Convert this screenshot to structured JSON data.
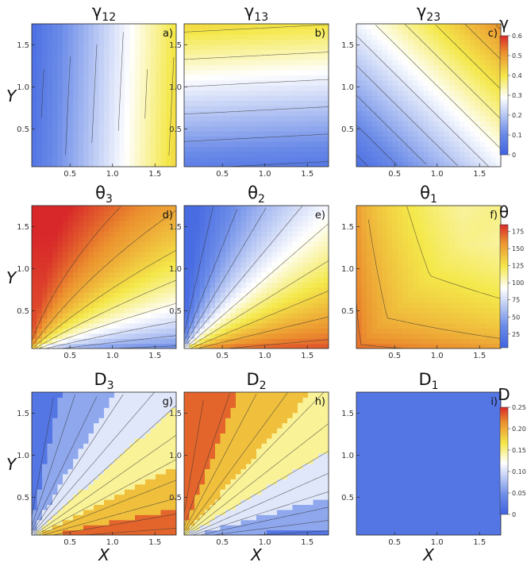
{
  "chart_data": [
    {
      "type": "heatmap",
      "panel": "a)",
      "title": "γ12",
      "xlabel": "",
      "ylabel": "Y",
      "xticks": [
        0.5,
        1.0,
        1.5
      ],
      "yticks": [
        0.5,
        1.0,
        1.5
      ],
      "xlim": [
        0.05,
        1.75
      ],
      "ylim": [
        0.05,
        1.75
      ],
      "colorbar": "gamma",
      "field": "gx",
      "scale": 0.6,
      "levels": 9,
      "gradient": "h"
    },
    {
      "type": "heatmap",
      "panel": "b)",
      "title": "γ13",
      "xlabel": "",
      "ylabel": "",
      "xticks": [
        0.5,
        1.0,
        1.5
      ],
      "yticks": [
        0.5,
        1.0,
        1.5
      ],
      "xlim": [
        0.05,
        1.75
      ],
      "ylim": [
        0.05,
        1.75
      ],
      "colorbar": "gamma",
      "field": "gy",
      "scale": 0.6,
      "levels": 9,
      "gradient": "v"
    },
    {
      "type": "heatmap",
      "panel": "c)",
      "title": "γ23",
      "xlabel": "",
      "ylabel": "",
      "xticks": [
        0.5,
        1.0,
        1.5
      ],
      "yticks": [
        0.5,
        1.0,
        1.5
      ],
      "xlim": [
        0.05,
        1.75
      ],
      "ylim": [
        0.05,
        1.75
      ],
      "colorbar": "gamma",
      "field": "gxy",
      "scale": 0.6,
      "levels": 12,
      "gradient": "d"
    },
    {
      "type": "heatmap",
      "panel": "d)",
      "title": "θ3",
      "xlabel": "",
      "ylabel": "Y",
      "xticks": [
        0.5,
        1.0,
        1.5
      ],
      "yticks": [
        0.5,
        1.0,
        1.5
      ],
      "xlim": [
        0.05,
        1.75
      ],
      "ylim": [
        0.05,
        1.75
      ],
      "colorbar": "theta",
      "field": "t3",
      "scale": 180,
      "levels": 10
    },
    {
      "type": "heatmap",
      "panel": "e)",
      "title": "θ2",
      "xlabel": "",
      "ylabel": "",
      "xticks": [
        0.5,
        1.0,
        1.5
      ],
      "yticks": [
        0.5,
        1.0,
        1.5
      ],
      "xlim": [
        0.05,
        1.75
      ],
      "ylim": [
        0.05,
        1.75
      ],
      "colorbar": "theta",
      "field": "t2",
      "scale": 180,
      "levels": 10
    },
    {
      "type": "heatmap",
      "panel": "f)",
      "title": "θ1",
      "xlabel": "",
      "ylabel": "",
      "xticks": [
        0.5,
        1.0,
        1.5
      ],
      "yticks": [
        0.5,
        1.0,
        1.5
      ],
      "xlim": [
        0.05,
        1.75
      ],
      "ylim": [
        0.05,
        1.75
      ],
      "colorbar": "theta",
      "field": "t1",
      "scale": 180,
      "levels": 9
    },
    {
      "type": "heatmap",
      "panel": "g)",
      "title": "D3",
      "xlabel": "X",
      "ylabel": "Y",
      "xticks": [
        0.5,
        1.0,
        1.5
      ],
      "yticks": [
        0.5,
        1.0,
        1.5
      ],
      "xlim": [
        0.05,
        1.75
      ],
      "ylim": [
        0.05,
        1.75
      ],
      "colorbar": "dens",
      "field": "d3",
      "scale": 0.25,
      "levels": 14,
      "banded": true
    },
    {
      "type": "heatmap",
      "panel": "h)",
      "title": "D2",
      "xlabel": "X",
      "ylabel": "",
      "xticks": [
        0.5,
        1.0,
        1.5
      ],
      "yticks": [
        0.5,
        1.0,
        1.5
      ],
      "xlim": [
        0.05,
        1.75
      ],
      "ylim": [
        0.05,
        1.75
      ],
      "colorbar": "dens",
      "field": "d2",
      "scale": 0.25,
      "levels": 14,
      "banded": true
    },
    {
      "type": "heatmap",
      "panel": "i)",
      "title": "D1",
      "xlabel": "X",
      "ylabel": "",
      "xticks": [
        0.5,
        1.0,
        1.5
      ],
      "yticks": [
        0.5,
        1.0,
        1.5
      ],
      "xlim": [
        0.05,
        1.75
      ],
      "ylim": [
        0.05,
        1.75
      ],
      "colorbar": "dens",
      "field": "d1",
      "scale": 0.25,
      "levels": 4,
      "banded": true
    }
  ],
  "colorbars": {
    "gamma": {
      "symbol": "γ",
      "ticks": [
        "0.6",
        "0.5",
        "0.4",
        "0.3",
        "0.2",
        "0.1",
        "0"
      ],
      "values": [
        0.6,
        0.5,
        0.4,
        0.3,
        0.2,
        0.1,
        0
      ]
    },
    "theta": {
      "symbol": "θ",
      "ticks": [
        "175",
        "150",
        "125",
        "100",
        "75",
        "50",
        "25"
      ],
      "values": [
        175,
        150,
        125,
        100,
        75,
        50,
        25
      ]
    },
    "dens": {
      "symbol": "D",
      "ticks": [
        "0.25",
        "0.20",
        "0.15",
        "0.10",
        "0.05",
        "0"
      ],
      "values": [
        0.25,
        0.2,
        0.15,
        0.1,
        0.05,
        0
      ]
    }
  },
  "colors": {
    "low": "#3f63e0",
    "mid": "#ffffff",
    "high1": "#f4e84a",
    "high2": "#eb8f2e",
    "top": "#d8282a"
  }
}
